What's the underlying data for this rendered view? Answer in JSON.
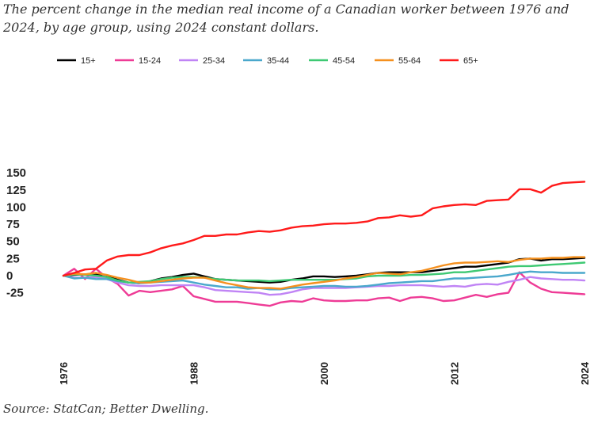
{
  "subtitle": "The percent change in the median real income of a Canadian worker between 1976 and 2024, by age group, using 2024 constant dollars.",
  "source": "Source: StatCan; Better Dwelling.",
  "chart_data": {
    "type": "line",
    "title": "",
    "xlabel": "",
    "ylabel": "",
    "xlim": [
      1976,
      2024
    ],
    "ylim": [
      -50,
      150
    ],
    "yticks": [
      150,
      125,
      100,
      75,
      50,
      25,
      0,
      -25
    ],
    "xticks": [
      1976,
      1988,
      2000,
      2012,
      2024
    ],
    "legend_position": "top",
    "grid": false,
    "x": [
      1976,
      1977,
      1978,
      1979,
      1980,
      1981,
      1982,
      1983,
      1984,
      1985,
      1986,
      1987,
      1988,
      1989,
      1990,
      1991,
      1992,
      1993,
      1994,
      1995,
      1996,
      1997,
      1998,
      1999,
      2000,
      2001,
      2002,
      2003,
      2004,
      2005,
      2006,
      2007,
      2008,
      2009,
      2010,
      2011,
      2012,
      2013,
      2014,
      2015,
      2016,
      2017,
      2018,
      2019,
      2020,
      2021,
      2022,
      2023,
      2024
    ],
    "series": [
      {
        "name": "15+",
        "color": "#000000",
        "values": [
          0,
          1,
          2,
          2,
          -1,
          -6,
          -10,
          -11,
          -8,
          -4,
          -2,
          1,
          3,
          -1,
          -5,
          -6,
          -7,
          -8,
          -9,
          -10,
          -9,
          -6,
          -4,
          -1,
          -1,
          -2,
          -1,
          0,
          2,
          4,
          5,
          5,
          5,
          5,
          7,
          9,
          11,
          13,
          13,
          15,
          17,
          19,
          24,
          25,
          22,
          24,
          24,
          25,
          26
        ]
      },
      {
        "name": "15-24",
        "color": "#ee3b96",
        "values": [
          0,
          10,
          -5,
          10,
          -3,
          -12,
          -29,
          -22,
          -24,
          -22,
          -20,
          -15,
          -30,
          -34,
          -38,
          -38,
          -38,
          -40,
          -42,
          -44,
          -39,
          -37,
          -38,
          -33,
          -36,
          -37,
          -37,
          -36,
          -36,
          -33,
          -32,
          -37,
          -32,
          -31,
          -33,
          -37,
          -36,
          -32,
          -28,
          -31,
          -27,
          -25,
          5,
          -10,
          -19,
          -24,
          -25,
          -26,
          -27
        ]
      },
      {
        "name": "25-34",
        "color": "#c084f5",
        "values": [
          0,
          -3,
          -3,
          -2,
          -5,
          -10,
          -14,
          -15,
          -15,
          -14,
          -14,
          -14,
          -14,
          -17,
          -21,
          -22,
          -23,
          -24,
          -25,
          -28,
          -27,
          -24,
          -20,
          -18,
          -18,
          -18,
          -18,
          -17,
          -16,
          -15,
          -15,
          -14,
          -14,
          -14,
          -15,
          -16,
          -15,
          -16,
          -13,
          -12,
          -13,
          -9,
          -6,
          -2,
          -4,
          -5,
          -6,
          -6,
          -7
        ]
      },
      {
        "name": "35-44",
        "color": "#4aa8cc",
        "values": [
          0,
          -4,
          -3,
          -5,
          -5,
          -8,
          -10,
          -11,
          -10,
          -9,
          -8,
          -7,
          -10,
          -13,
          -15,
          -17,
          -17,
          -19,
          -18,
          -20,
          -20,
          -18,
          -17,
          -16,
          -15,
          -15,
          -16,
          -16,
          -15,
          -13,
          -11,
          -10,
          -9,
          -8,
          -8,
          -6,
          -4,
          -4,
          -3,
          -2,
          -1,
          1,
          4,
          6,
          5,
          5,
          4,
          4,
          4
        ]
      },
      {
        "name": "45-54",
        "color": "#3ec973",
        "values": [
          0,
          2,
          1,
          0,
          -2,
          -7,
          -10,
          -9,
          -8,
          -5,
          -3,
          -2,
          -2,
          -3,
          -5,
          -6,
          -7,
          -7,
          -7,
          -8,
          -7,
          -6,
          -6,
          -6,
          -6,
          -6,
          -5,
          -4,
          -1,
          0,
          0,
          0,
          1,
          1,
          2,
          3,
          5,
          5,
          7,
          9,
          11,
          13,
          14,
          14,
          15,
          16,
          17,
          18,
          19
        ]
      },
      {
        "name": "55-64",
        "color": "#f5901e",
        "values": [
          0,
          3,
          2,
          4,
          1,
          -3,
          -6,
          -10,
          -10,
          -8,
          -6,
          -4,
          -3,
          -3,
          -7,
          -11,
          -14,
          -17,
          -18,
          -18,
          -19,
          -16,
          -13,
          -11,
          -9,
          -7,
          -4,
          -2,
          1,
          4,
          3,
          2,
          5,
          7,
          11,
          15,
          18,
          19,
          19,
          20,
          21,
          20,
          23,
          25,
          25,
          26,
          26,
          27,
          27
        ]
      },
      {
        "name": "65+",
        "color": "#ff1a1a",
        "values": [
          0,
          4,
          9,
          10,
          22,
          28,
          30,
          30,
          34,
          40,
          44,
          47,
          52,
          58,
          58,
          60,
          60,
          63,
          65,
          64,
          66,
          70,
          72,
          73,
          75,
          76,
          76,
          77,
          79,
          84,
          85,
          88,
          86,
          88,
          98,
          101,
          103,
          104,
          103,
          109,
          110,
          111,
          126,
          126,
          121,
          131,
          135,
          136,
          137
        ]
      }
    ]
  }
}
